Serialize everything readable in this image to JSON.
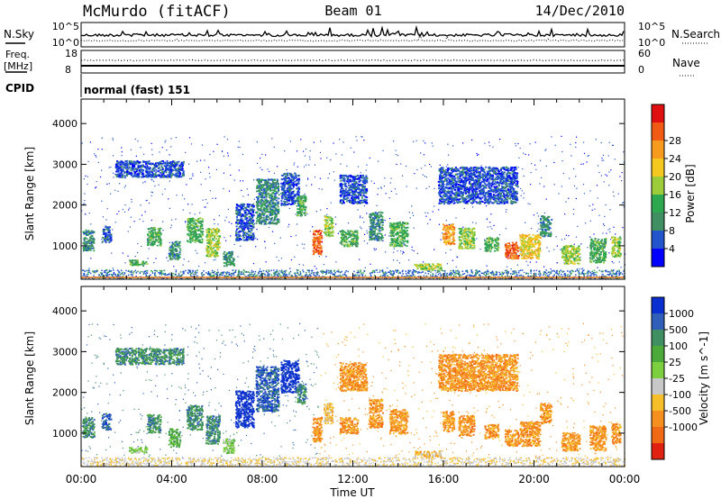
{
  "header": {
    "title": "McMurdo (fitACF)",
    "beam": "Beam 01",
    "date": "14/Dec/2010"
  },
  "top_panels": {
    "nsky_label": "N.Sky",
    "nsky_ticks": [
      "10^5",
      "10^0"
    ],
    "nsearch_label": "N.Search",
    "freq_label_line1": "Freq.",
    "freq_label_line2": "[MHz]",
    "freq_ticks": [
      "18",
      "8"
    ],
    "nave_label": "Nave",
    "nave_ticks": [
      "60",
      "0"
    ],
    "cpid_label": "CPID",
    "cpid_value": "normal (fast) 151"
  },
  "chart_data": [
    {
      "type": "heatmap",
      "name": "power",
      "xlabel": "",
      "ylabel": "Slant Range [km]",
      "xlim": [
        0,
        24
      ],
      "ylim": [
        180,
        4600
      ],
      "yticks": [
        "1000",
        "2000",
        "3000",
        "4000"
      ],
      "colorbar_label": "Power [dB]",
      "colorbar_ticks": [
        "4",
        "8",
        "12",
        "16",
        "20",
        "24",
        "28"
      ],
      "colorbar_colors": [
        "#0000ff",
        "#2255cc",
        "#3f8f63",
        "#2ea84f",
        "#9ccc3a",
        "#f4c81f",
        "#f79b1e",
        "#f05a12",
        "#e01010"
      ]
    },
    {
      "type": "heatmap",
      "name": "velocity",
      "xlabel": "Time UT",
      "ylabel": "Slant Range [km]",
      "xlim": [
        0,
        24
      ],
      "ylim": [
        180,
        4600
      ],
      "xticks": [
        "00:00",
        "04:00",
        "08:00",
        "12:00",
        "16:00",
        "20:00",
        "00:00"
      ],
      "yticks": [
        "1000",
        "2000",
        "3000",
        "4000"
      ],
      "colorbar_label": "Velocity [m s^-1]",
      "colorbar_ticks": [
        "1000",
        "500",
        "100",
        "25",
        "-25",
        "-100",
        "-500",
        "-1000"
      ],
      "colorbar_colors": [
        "#0a2fd0",
        "#2f5fb8",
        "#3f8f63",
        "#4caa3a",
        "#7cd040",
        "#c8c8c8",
        "#f6bf2a",
        "#f59020",
        "#f06a15",
        "#e02010"
      ]
    }
  ]
}
